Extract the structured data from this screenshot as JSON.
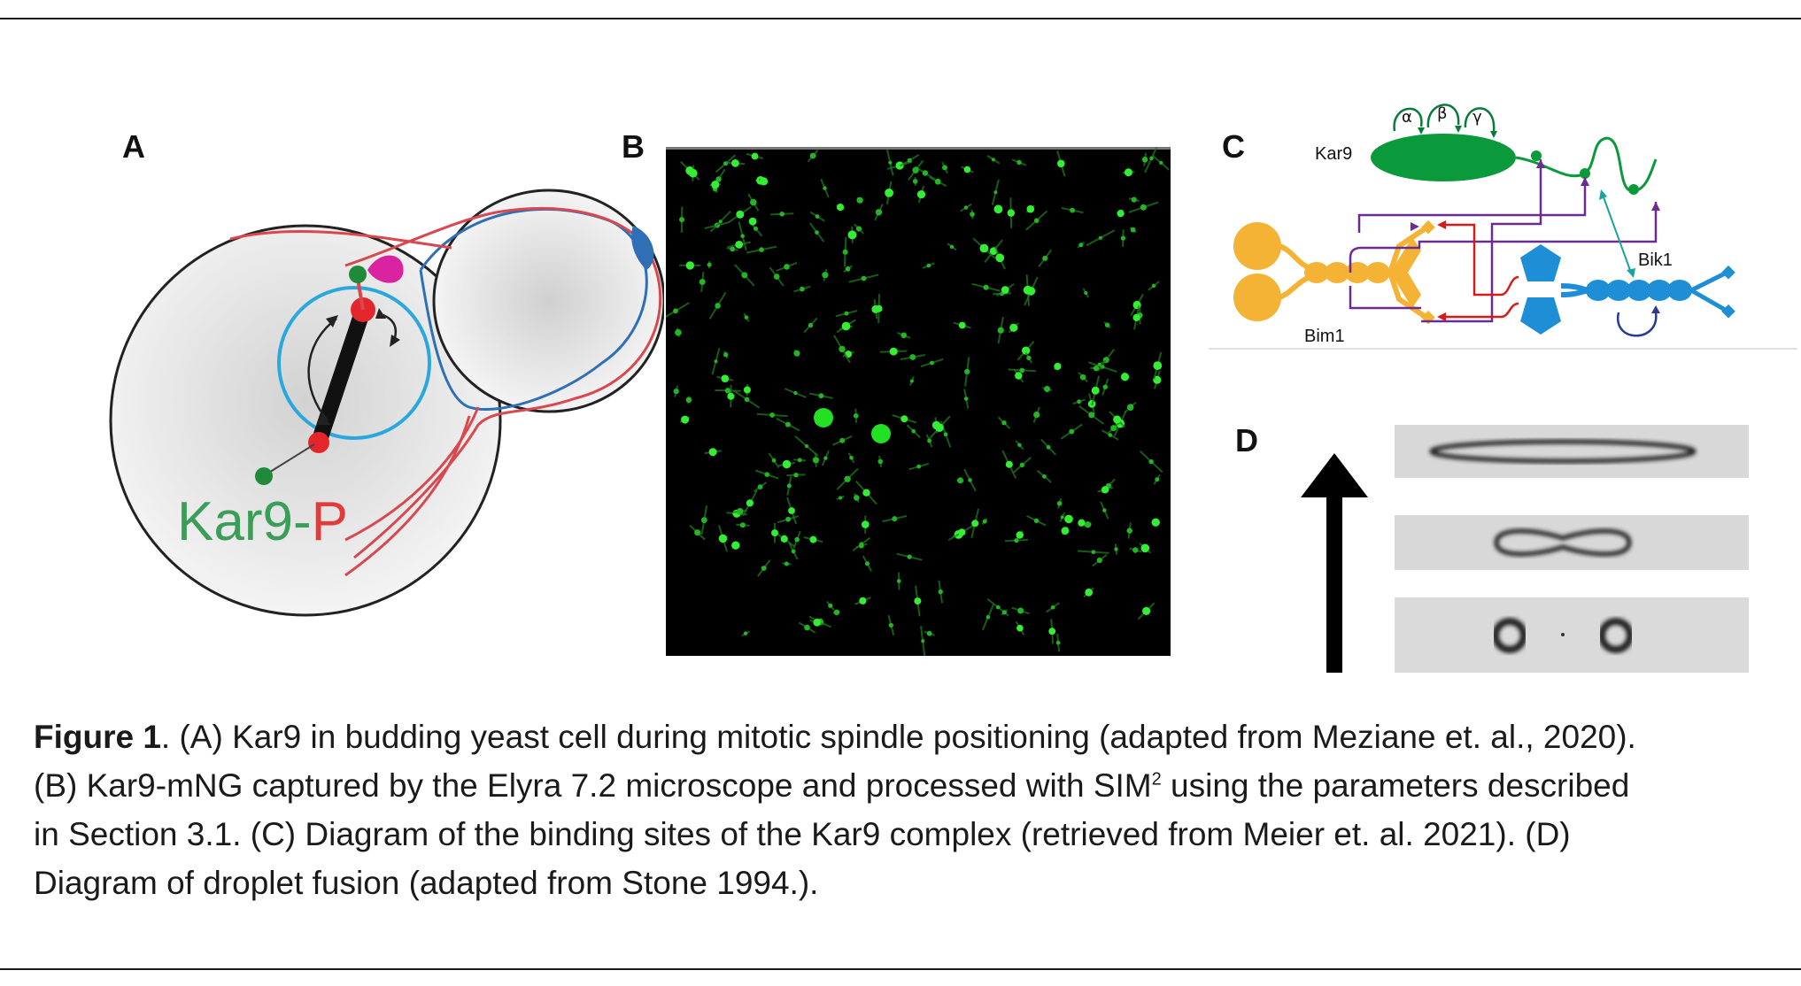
{
  "panels": {
    "a": {
      "letter": "A",
      "label_green": "Kar9",
      "label_dash": "-",
      "label_red": "P"
    },
    "b": {
      "letter": "B"
    },
    "c": {
      "letter": "C",
      "kar9": "Kar9",
      "bim1": "Bim1",
      "bik1": "Bik1",
      "greek": [
        "α",
        "β",
        "γ"
      ]
    },
    "d": {
      "letter": "D"
    }
  },
  "caption": {
    "label": "Figure 1",
    "line1_rest": ". (A) Kar9 in budding yeast cell during mitotic spindle positioning (adapted from Meziane et. al., 2020).",
    "line2_pre": "(B) Kar9-mNG captured by the Elyra 7.2 microscope and processed with SIM",
    "line2_sup": "2",
    "line2_post": " using the parameters described",
    "line3": "in Section 3.1. (C) Diagram of the binding sites of the Kar9 complex (retrieved from Meier et. al. 2021). (D)",
    "line4": "Diagram of droplet fusion (adapted from Stone 1994.)."
  },
  "colors": {
    "kar9_green": "#0a9a3c",
    "bim1_orange": "#f5b335",
    "bik1_blue": "#1e8fd6",
    "microtubule_red": "#d9474f",
    "sim_green": "#22dd22"
  }
}
